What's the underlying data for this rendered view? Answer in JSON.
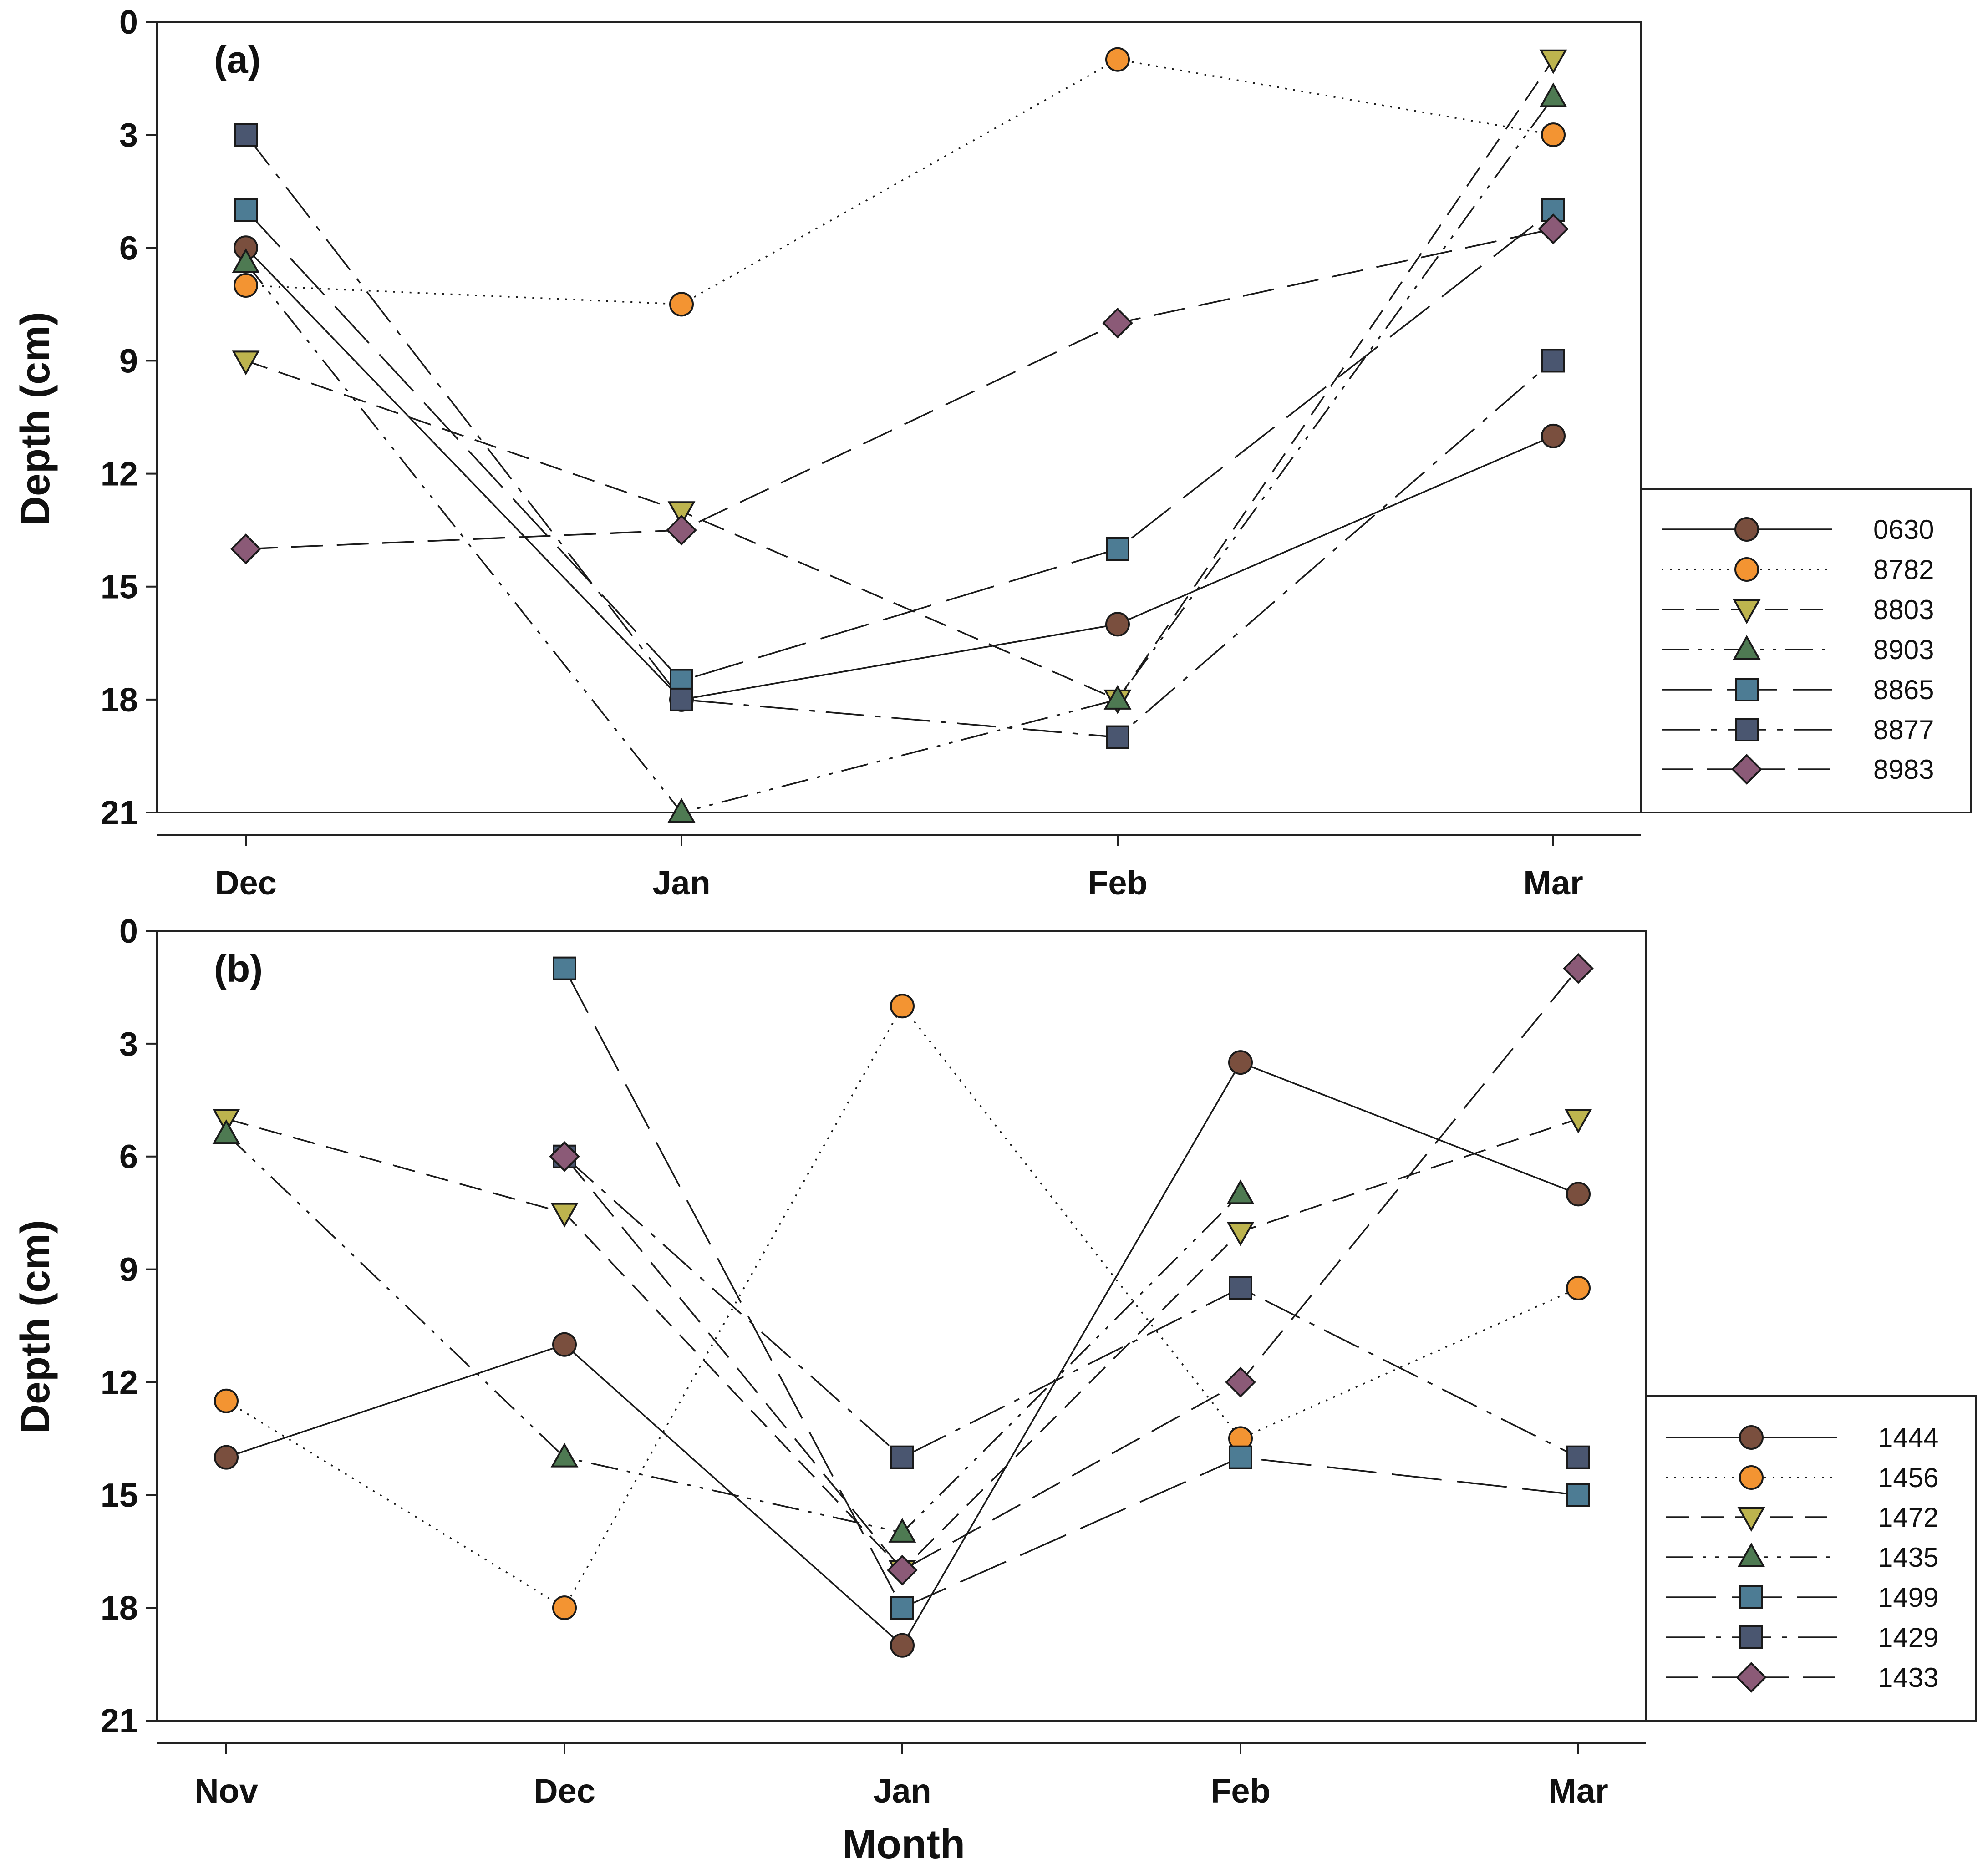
{
  "figure": {
    "xlabel": "Month",
    "ylabel": "Depth (cm)"
  },
  "chart_data": [
    {
      "type": "line",
      "panel_label": "(a)",
      "categories": [
        "Dec",
        "Jan",
        "Feb",
        "Mar"
      ],
      "ylabel": "Depth (cm)",
      "y_inverted": true,
      "ylim": [
        0,
        21
      ],
      "yticks": [
        0,
        3,
        6,
        9,
        12,
        15,
        18,
        21
      ],
      "legend_position": "right",
      "series": [
        {
          "name": "0630",
          "marker": "circle",
          "color": "#7a4f3e",
          "dash": "solid",
          "values": [
            6,
            18,
            16,
            11
          ]
        },
        {
          "name": "8782",
          "marker": "circle",
          "color": "#f39432",
          "dash": "dotted",
          "values": [
            7,
            7.5,
            1,
            3
          ]
        },
        {
          "name": "8803",
          "marker": "triangle-down",
          "color": "#bdb44e",
          "dash": "dashed",
          "values": [
            9,
            13,
            18,
            1
          ]
        },
        {
          "name": "8903",
          "marker": "triangle-up",
          "color": "#4e7a52",
          "dash": "dash-dot-dot",
          "values": [
            6.4,
            21,
            18,
            2
          ]
        },
        {
          "name": "8865",
          "marker": "square",
          "color": "#4d7c94",
          "dash": "long-dash",
          "values": [
            5,
            17.5,
            14,
            5
          ]
        },
        {
          "name": "8877",
          "marker": "square",
          "color": "#4a5670",
          "dash": "dash-dot",
          "values": [
            3,
            18,
            19,
            9
          ]
        },
        {
          "name": "8983",
          "marker": "diamond",
          "color": "#8b5a77",
          "dash": "medium-dash",
          "values": [
            14,
            13.5,
            8,
            5.5
          ]
        }
      ]
    },
    {
      "type": "line",
      "panel_label": "(b)",
      "categories": [
        "Nov",
        "Dec",
        "Jan",
        "Feb",
        "Mar"
      ],
      "ylabel": "Depth (cm)",
      "xlabel": "Month",
      "y_inverted": true,
      "ylim": [
        0,
        21
      ],
      "yticks": [
        0,
        3,
        6,
        9,
        12,
        15,
        18,
        21
      ],
      "legend_position": "right",
      "series": [
        {
          "name": "1444",
          "marker": "circle",
          "color": "#7a4f3e",
          "dash": "solid",
          "values": [
            14,
            11,
            19,
            3.5,
            7
          ]
        },
        {
          "name": "1456",
          "marker": "circle",
          "color": "#f39432",
          "dash": "dotted",
          "values": [
            12.5,
            18,
            2,
            13.5,
            9.5
          ]
        },
        {
          "name": "1472",
          "marker": "triangle-down",
          "color": "#bdb44e",
          "dash": "dashed",
          "values": [
            5,
            7.5,
            17,
            8,
            5
          ]
        },
        {
          "name": "1435",
          "marker": "triangle-up",
          "color": "#4e7a52",
          "dash": "dash-dot-dot",
          "values": [
            5.4,
            14,
            16,
            7,
            null
          ]
        },
        {
          "name": "1499",
          "marker": "square",
          "color": "#4d7c94",
          "dash": "long-dash",
          "values": [
            null,
            1,
            18,
            14,
            15
          ]
        },
        {
          "name": "1429",
          "marker": "square",
          "color": "#4a5670",
          "dash": "dash-dot",
          "values": [
            null,
            6,
            14,
            9.5,
            14
          ]
        },
        {
          "name": "1433",
          "marker": "diamond",
          "color": "#8b5a77",
          "dash": "medium-dash",
          "values": [
            null,
            6,
            17,
            12,
            1
          ]
        }
      ]
    }
  ]
}
